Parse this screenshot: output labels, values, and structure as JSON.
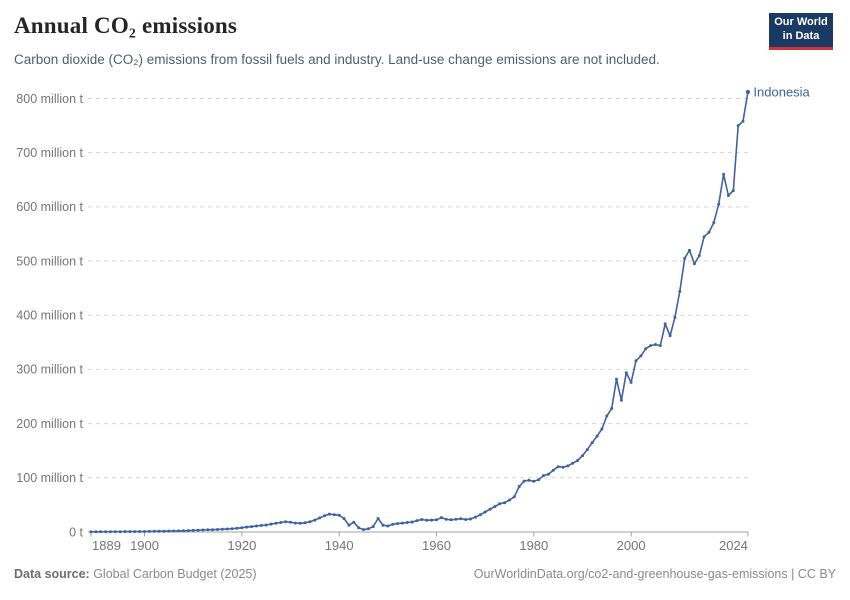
{
  "header": {
    "title": "Annual CO₂ emissions",
    "subtitle": "Carbon dioxide (CO₂) emissions from fossil fuels and industry. Land-use change emissions are not included.",
    "logo": {
      "line1": "Our World",
      "line2": "in Data"
    }
  },
  "footer": {
    "datasource_label": "Data source:",
    "datasource_value": " Global Carbon Budget (2025)",
    "link": "OurWorldinData.org/co2-and-greenhouse-gas-emissions | CC BY"
  },
  "colors": {
    "line": "#3f63a2",
    "entity_label": "#3f63a2",
    "grid": "#d6d6d6",
    "axis": "#a0a0a0",
    "tick_label": "#757575",
    "logo_bg": "#1a3a63",
    "logo_red": "#cf3537"
  },
  "chart_data": {
    "type": "line",
    "title": "Annual CO₂ emissions",
    "subtitle": "Carbon dioxide (CO₂) emissions from fossil fuels and industry. Land-use change emissions are not included.",
    "unit": "million tonnes of CO₂",
    "entity": "Indonesia",
    "end_label": "Indonesia",
    "legend": "none",
    "grid": "horizontal-dashed",
    "marker": "circle",
    "xlabel": "",
    "ylabel": "",
    "ylim": [
      0,
      800
    ],
    "yticks": [
      0,
      100,
      200,
      300,
      400,
      500,
      600,
      700,
      800
    ],
    "ytick_labels": [
      "0 t",
      "100 million t",
      "200 million t",
      "300 million t",
      "400 million t",
      "500 million t",
      "600 million t",
      "700 million t",
      "800 million t"
    ],
    "xticks": [
      1889,
      1900,
      1920,
      1940,
      1960,
      1980,
      2000,
      2024
    ],
    "years": [
      1889,
      1890,
      1891,
      1892,
      1893,
      1894,
      1895,
      1896,
      1897,
      1898,
      1899,
      1900,
      1901,
      1902,
      1903,
      1904,
      1905,
      1906,
      1907,
      1908,
      1909,
      1910,
      1911,
      1912,
      1913,
      1914,
      1915,
      1916,
      1917,
      1918,
      1919,
      1920,
      1921,
      1922,
      1923,
      1924,
      1925,
      1926,
      1927,
      1928,
      1929,
      1930,
      1931,
      1932,
      1933,
      1934,
      1935,
      1936,
      1937,
      1938,
      1939,
      1940,
      1941,
      1942,
      1943,
      1944,
      1945,
      1946,
      1947,
      1948,
      1949,
      1950,
      1951,
      1952,
      1953,
      1954,
      1955,
      1956,
      1957,
      1958,
      1959,
      1960,
      1961,
      1962,
      1963,
      1964,
      1965,
      1966,
      1967,
      1968,
      1969,
      1970,
      1971,
      1972,
      1973,
      1974,
      1975,
      1976,
      1977,
      1978,
      1979,
      1980,
      1981,
      1982,
      1983,
      1984,
      1985,
      1986,
      1987,
      1988,
      1989,
      1990,
      1991,
      1992,
      1993,
      1994,
      1995,
      1996,
      1997,
      1998,
      1999,
      2000,
      2001,
      2002,
      2003,
      2004,
      2005,
      2006,
      2007,
      2008,
      2009,
      2010,
      2011,
      2012,
      2013,
      2014,
      2015,
      2016,
      2017,
      2018,
      2019,
      2020,
      2021,
      2022,
      2023,
      2024
    ],
    "values": [
      0.3,
      0.4,
      0.4,
      0.5,
      0.5,
      0.6,
      0.6,
      0.7,
      0.7,
      0.8,
      0.9,
      1.0,
      1.1,
      1.2,
      1.3,
      1.4,
      1.6,
      1.8,
      2.0,
      2.3,
      2.6,
      3.0,
      3.3,
      3.6,
      4.0,
      4.3,
      4.7,
      5.1,
      5.5,
      6.0,
      6.8,
      8.0,
      9.0,
      10.0,
      11.0,
      12.0,
      13.0,
      14.5,
      16.0,
      17.5,
      19.0,
      18.0,
      16.5,
      16.0,
      17.0,
      19.0,
      22.0,
      26.0,
      30.0,
      33.0,
      32.0,
      31.0,
      25.0,
      12.5,
      18.0,
      8.0,
      4.5,
      6.0,
      10.0,
      25.0,
      12.5,
      11.0,
      14.0,
      15.5,
      16.5,
      17.5,
      18.5,
      21.0,
      23.0,
      21.5,
      22.0,
      22.5,
      26.5,
      23.5,
      22.5,
      23.5,
      24.5,
      23.0,
      24.0,
      27.5,
      32.0,
      37.0,
      42.0,
      47.0,
      52.0,
      54.0,
      59.0,
      65.0,
      84.0,
      94.0,
      95.5,
      93.5,
      96.5,
      104.0,
      106.5,
      114.0,
      120.5,
      119.5,
      122.0,
      127.0,
      132.0,
      141.0,
      152.0,
      165.0,
      177.0,
      190.0,
      214.0,
      228.0,
      282.0,
      243.0,
      294.0,
      276.0,
      316.0,
      325.0,
      338.0,
      344.0,
      346.0,
      344.0,
      384.0,
      362.0,
      396.0,
      444.0,
      505.0,
      520.0,
      495.0,
      510.0,
      545.0,
      553.0,
      571.0,
      605.0,
      660.0,
      621.0,
      630.0,
      750.0,
      758.0,
      812.0
    ]
  }
}
